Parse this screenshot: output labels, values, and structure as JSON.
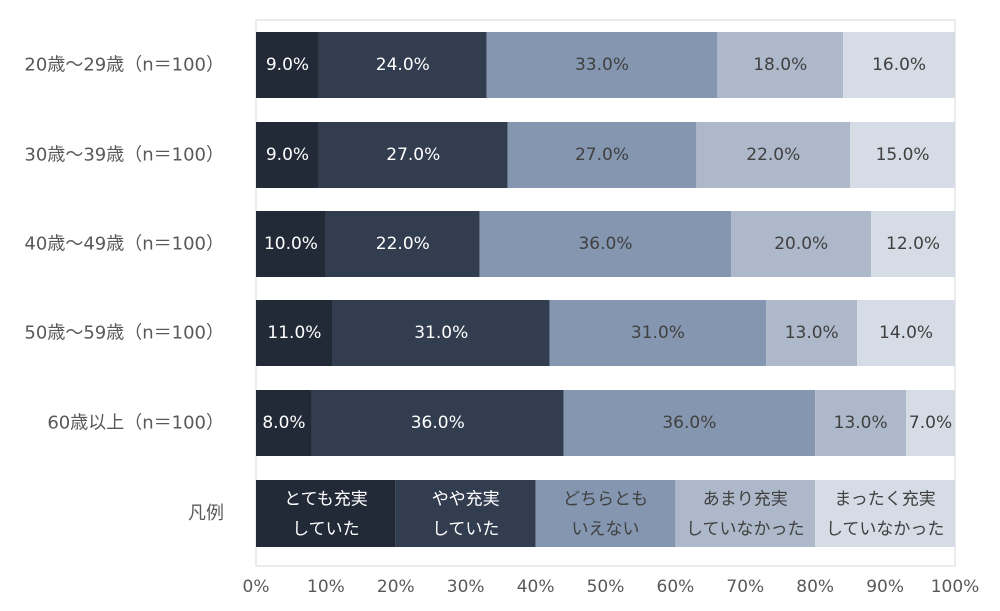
{
  "chart_data": {
    "type": "bar",
    "orientation": "horizontal",
    "stacked": true,
    "categories": [
      "20歳〜29歳（n＝100）",
      "30歳〜39歳（n＝100）",
      "40歳〜49歳（n＝100）",
      "50歳〜59歳（n＝100）",
      "60歳以上（n＝100）"
    ],
    "series": [
      {
        "name": "とても充実していた",
        "color": "#222a38",
        "text_color": "#ffffff",
        "values": [
          9.0,
          9.0,
          10.0,
          11.0,
          8.0
        ]
      },
      {
        "name": "やや充実していた",
        "color": "#333d50",
        "text_color": "#ffffff",
        "values": [
          24.0,
          27.0,
          22.0,
          31.0,
          36.0
        ]
      },
      {
        "name": "どちらともいえない",
        "color": "#8496b0",
        "text_color": "#404040",
        "values": [
          33.0,
          27.0,
          36.0,
          31.0,
          36.0
        ]
      },
      {
        "name": "あまり充実していなかった",
        "color": "#adb9ca",
        "text_color": "#404040",
        "values": [
          18.0,
          22.0,
          20.0,
          13.0,
          13.0
        ]
      },
      {
        "name": "まったく充実していなかった",
        "color": "#d6dce5",
        "text_color": "#404040",
        "values": [
          16.0,
          15.0,
          12.0,
          14.0,
          7.0
        ]
      }
    ],
    "value_format": "0.0%",
    "legend": {
      "label": "凡例",
      "entries": [
        [
          "とても充実",
          "していた"
        ],
        [
          "やや充実",
          "していた"
        ],
        [
          "どちらとも",
          "いえない"
        ],
        [
          "あまり充実",
          "していなかった"
        ],
        [
          "まったく充実",
          "していなかった"
        ]
      ],
      "placement": "bottom-row"
    },
    "xlim": [
      0,
      100
    ],
    "xticks": [
      "0%",
      "10%",
      "20%",
      "30%",
      "40%",
      "50%",
      "60%",
      "70%",
      "80%",
      "90%",
      "100%"
    ],
    "grid": false
  }
}
